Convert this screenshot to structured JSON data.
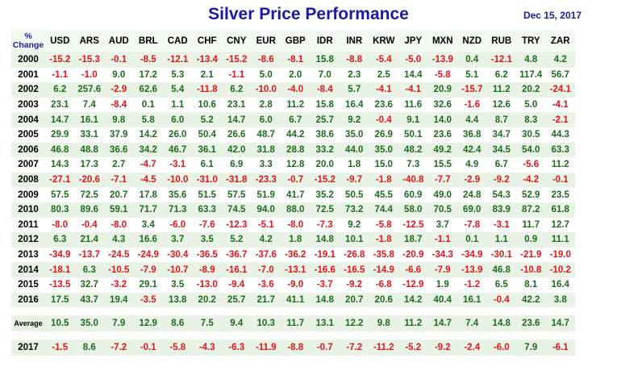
{
  "title": "Silver Price Performance",
  "date": "Dec 15, 2017",
  "header_label_line1": "%",
  "header_label_line2": "Change",
  "currencies": [
    "USD",
    "ARS",
    "AUD",
    "BRL",
    "CAD",
    "CHF",
    "CNY",
    "EUR",
    "GBP",
    "IDR",
    "INR",
    "KRW",
    "JPY",
    "MXN",
    "NZD",
    "RUB",
    "TRY",
    "ZAR"
  ],
  "rows": [
    {
      "year": "2000",
      "values": [
        "-15.2",
        "-15.3",
        "-0.1",
        "-8.5",
        "-12.1",
        "-13.4",
        "-15.2",
        "-8.6",
        "-8.1",
        "15.8",
        "-8.8",
        "-5.4",
        "-5.0",
        "-13.9",
        "0.4",
        "-12.1",
        "4.8",
        "4.2"
      ]
    },
    {
      "year": "2001",
      "values": [
        "-1.1",
        "-1.0",
        "9.0",
        "17.2",
        "5.3",
        "2.1",
        "-1.1",
        "5.0",
        "2.0",
        "7.0",
        "2.3",
        "2.5",
        "14.4",
        "-5.8",
        "5.1",
        "6.2",
        "117.4",
        "56.7"
      ]
    },
    {
      "year": "2002",
      "values": [
        "6.2",
        "257.6",
        "-2.9",
        "62.6",
        "5.4",
        "-11.8",
        "6.2",
        "-10.0",
        "-4.0",
        "-8.4",
        "5.7",
        "-4.1",
        "-4.1",
        "20.9",
        "-15.7",
        "11.2",
        "20.2",
        "-24.1"
      ]
    },
    {
      "year": "2003",
      "values": [
        "23.1",
        "7.4",
        "-8.4",
        "0.1",
        "1.1",
        "10.6",
        "23.1",
        "2.8",
        "11.2",
        "15.8",
        "16.4",
        "23.6",
        "11.6",
        "32.6",
        "-1.6",
        "12.6",
        "5.0",
        "-4.1"
      ]
    },
    {
      "year": "2004",
      "values": [
        "14.7",
        "16.1",
        "9.8",
        "5.8",
        "6.0",
        "5.2",
        "14.7",
        "6.0",
        "6.7",
        "25.7",
        "9.2",
        "-0.4",
        "9.1",
        "14.0",
        "4.4",
        "8.7",
        "8.3",
        "-2.1"
      ]
    },
    {
      "year": "2005",
      "values": [
        "29.9",
        "33.1",
        "37.9",
        "14.2",
        "26.0",
        "50.4",
        "26.6",
        "48.7",
        "44.2",
        "38.6",
        "35.0",
        "26.9",
        "50.1",
        "23.6",
        "36.8",
        "34.7",
        "30.5",
        "44.3"
      ]
    },
    {
      "year": "2006",
      "values": [
        "46.8",
        "48.8",
        "36.6",
        "34.2",
        "46.7",
        "36.1",
        "42.0",
        "31.8",
        "28.8",
        "33.2",
        "44.0",
        "35.0",
        "48.2",
        "49.2",
        "42.4",
        "34.5",
        "54.0",
        "63.3"
      ]
    },
    {
      "year": "2007",
      "values": [
        "14.3",
        "17.3",
        "2.7",
        "-4.7",
        "-3.1",
        "6.1",
        "6.9",
        "3.3",
        "12.8",
        "20.0",
        "1.8",
        "15.0",
        "7.3",
        "15.5",
        "4.9",
        "6.7",
        "-5.6",
        "11.2"
      ]
    },
    {
      "year": "2008",
      "values": [
        "-27.1",
        "-20.6",
        "-7.1",
        "-4.5",
        "-10.0",
        "-31.0",
        "-31.8",
        "-23.3",
        "-0.7",
        "-15.2",
        "-9.7",
        "-1.8",
        "-40.8",
        "-7.7",
        "-2.9",
        "-9.2",
        "-4.2",
        "-0.1"
      ]
    },
    {
      "year": "2009",
      "values": [
        "57.5",
        "72.5",
        "20.7",
        "17.8",
        "35.6",
        "51.5",
        "57.5",
        "51.9",
        "41.7",
        "35.2",
        "50.5",
        "45.5",
        "60.9",
        "49.0",
        "24.8",
        "54.3",
        "52.9",
        "23.5"
      ]
    },
    {
      "year": "2010",
      "values": [
        "80.3",
        "89.6",
        "59.1",
        "71.7",
        "71.3",
        "63.3",
        "74.5",
        "94.0",
        "88.0",
        "72.5",
        "73.2",
        "74.4",
        "58.0",
        "70.5",
        "69.0",
        "83.9",
        "87.2",
        "61.8"
      ]
    },
    {
      "year": "2011",
      "values": [
        "-8.0",
        "-0.4",
        "-8.0",
        "3.4",
        "-6.0",
        "-7.6",
        "-12.3",
        "-5.1",
        "-8.0",
        "-7.3",
        "9.2",
        "-5.8",
        "-12.5",
        "3.7",
        "-7.8",
        "-3.1",
        "11.7",
        "12.7"
      ]
    },
    {
      "year": "2012",
      "values": [
        "6.3",
        "21.4",
        "4.3",
        "16.6",
        "3.7",
        "3.5",
        "5.2",
        "4.2",
        "1.8",
        "14.8",
        "10.1",
        "-1.8",
        "18.7",
        "-1.1",
        "0.1",
        "1.1",
        "0.9",
        "11.1"
      ]
    },
    {
      "year": "2013",
      "values": [
        "-34.9",
        "-13.7",
        "-24.5",
        "-24.9",
        "-30.4",
        "-36.5",
        "-36.7",
        "-37.6",
        "-36.2",
        "-19.1",
        "-26.8",
        "-35.8",
        "-20.9",
        "-34.3",
        "-34.9",
        "-30.1",
        "-21.9",
        "-19.0"
      ]
    },
    {
      "year": "2014",
      "values": [
        "-18.1",
        "6.3",
        "-10.5",
        "-7.9",
        "-10.7",
        "-8.9",
        "-16.1",
        "-7.0",
        "-13.1",
        "-16.6",
        "-16.5",
        "-14.9",
        "-6.6",
        "-7.9",
        "-13.9",
        "46.8",
        "-10.8",
        "-10.2"
      ]
    },
    {
      "year": "2015",
      "values": [
        "-13.5",
        "32.7",
        "-3.2",
        "29.1",
        "3.5",
        "-13.0",
        "-9.4",
        "-3.6",
        "-9.0",
        "-3.7",
        "-9.2",
        "-6.8",
        "-12.9",
        "1.9",
        "-1.2",
        "6.5",
        "8.1",
        "16.4"
      ]
    },
    {
      "year": "2016",
      "values": [
        "17.5",
        "43.7",
        "19.4",
        "-3.5",
        "13.8",
        "20.2",
        "25.7",
        "21.7",
        "41.1",
        "14.8",
        "20.7",
        "20.6",
        "14.2",
        "40.4",
        "16.1",
        "-0.4",
        "42.2",
        "3.8"
      ]
    }
  ],
  "average": {
    "label": "Average",
    "values": [
      "10.5",
      "35.0",
      "7.9",
      "12.9",
      "8.6",
      "7.5",
      "9.4",
      "10.3",
      "11.7",
      "13.1",
      "12.2",
      "9.8",
      "11.2",
      "14.7",
      "7.4",
      "14.8",
      "23.6",
      "14.7"
    ]
  },
  "current": {
    "year": "2017",
    "values": [
      "-1.5",
      "8.6",
      "-7.2",
      "-0.1",
      "-5.8",
      "-4.3",
      "-6.3",
      "-11.9",
      "-8.8",
      "-0.7",
      "-7.2",
      "-11.2",
      "-5.2",
      "-9.2",
      "-2.4",
      "-6.0",
      "7.9",
      "-6.1"
    ]
  },
  "colors": {
    "title": "#1a1aa6",
    "positive": "#1d6b1d",
    "negative": "#e0161b",
    "row_shade": "#e8f3e6"
  }
}
